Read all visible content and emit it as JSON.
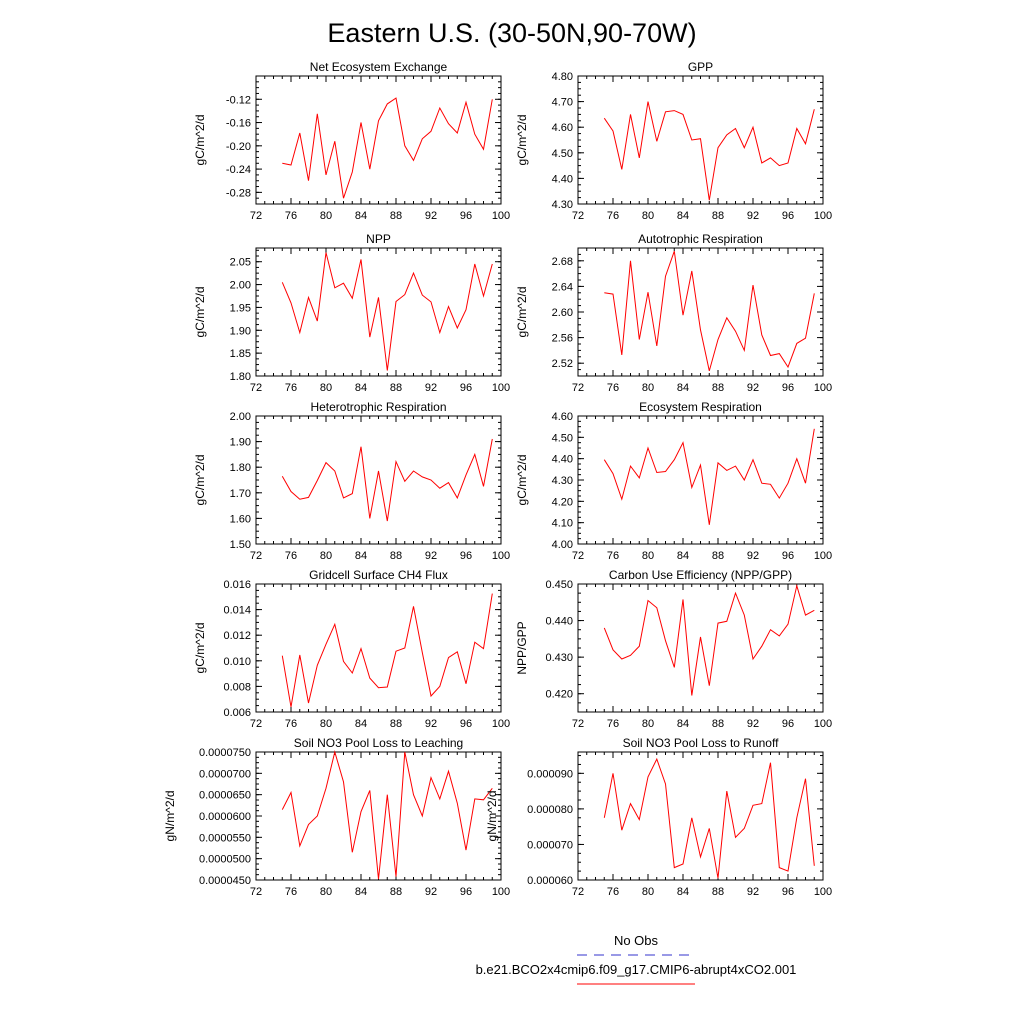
{
  "figure": {
    "title": "Eastern U.S. (30-50N,90-70W)",
    "legend": {
      "entries": [
        {
          "label": "No Obs",
          "color": "#3333cc",
          "dash": "dashed"
        },
        {
          "label": "b.e21.BCO2x4cmip6.f09_g17.CMIP6-abrupt4xCO2.001",
          "color": "#ff0000",
          "dash": "solid"
        }
      ]
    }
  },
  "chart_data": [
    {
      "type": "line",
      "title": "Net Ecosystem Exchange",
      "ylabel": "gC/m^2/d",
      "xlim": [
        72,
        100
      ],
      "ylim": [
        -0.3,
        -0.08
      ],
      "xticks": [
        "72",
        "76",
        "80",
        "84",
        "88",
        "92",
        "96",
        "100"
      ],
      "yticks": [
        "-0.12",
        "-0.16",
        "-0.20",
        "-0.24",
        "-0.28"
      ],
      "ytick_values": [
        -0.12,
        -0.16,
        -0.2,
        -0.24,
        -0.28
      ],
      "x": [
        75,
        76,
        77,
        78,
        79,
        80,
        81,
        82,
        83,
        84,
        85,
        86,
        87,
        88,
        89,
        90,
        91,
        92,
        93,
        94,
        95,
        96,
        97,
        98,
        99
      ],
      "series": [
        {
          "color": "#ff0000",
          "values": [
            -0.23,
            -0.233,
            -0.178,
            -0.26,
            -0.145,
            -0.25,
            -0.192,
            -0.29,
            -0.245,
            -0.16,
            -0.24,
            -0.157,
            -0.128,
            -0.118,
            -0.2,
            -0.225,
            -0.188,
            -0.175,
            -0.135,
            -0.162,
            -0.178,
            -0.125,
            -0.18,
            -0.206,
            -0.12
          ]
        }
      ]
    },
    {
      "type": "line",
      "title": "GPP",
      "ylabel": "gC/m^2/d",
      "xlim": [
        72,
        100
      ],
      "ylim": [
        4.3,
        4.8
      ],
      "xticks": [
        "72",
        "76",
        "80",
        "84",
        "88",
        "92",
        "96",
        "100"
      ],
      "yticks": [
        "4.80",
        "4.70",
        "4.60",
        "4.50",
        "4.40",
        "4.30"
      ],
      "ytick_values": [
        4.8,
        4.7,
        4.6,
        4.5,
        4.4,
        4.3
      ],
      "x": [
        75,
        76,
        77,
        78,
        79,
        80,
        81,
        82,
        83,
        84,
        85,
        86,
        87,
        88,
        89,
        90,
        91,
        92,
        93,
        94,
        95,
        96,
        97,
        98,
        99
      ],
      "series": [
        {
          "color": "#ff0000",
          "values": [
            4.635,
            4.585,
            4.435,
            4.65,
            4.48,
            4.7,
            4.545,
            4.66,
            4.665,
            4.65,
            4.55,
            4.555,
            4.315,
            4.52,
            4.57,
            4.595,
            4.52,
            4.6,
            4.46,
            4.48,
            4.45,
            4.46,
            4.595,
            4.535,
            4.67
          ]
        }
      ]
    },
    {
      "type": "line",
      "title": "NPP",
      "ylabel": "gC/m^2/d",
      "xlim": [
        72,
        100
      ],
      "ylim": [
        1.8,
        2.08
      ],
      "xticks": [
        "72",
        "76",
        "80",
        "84",
        "88",
        "92",
        "96",
        "100"
      ],
      "yticks": [
        "2.05",
        "2.00",
        "1.95",
        "1.90",
        "1.85",
        "1.80"
      ],
      "ytick_values": [
        2.05,
        2.0,
        1.95,
        1.9,
        1.85,
        1.8
      ],
      "x": [
        75,
        76,
        77,
        78,
        79,
        80,
        81,
        82,
        83,
        84,
        85,
        86,
        87,
        88,
        89,
        90,
        91,
        92,
        93,
        94,
        95,
        96,
        97,
        98,
        99
      ],
      "series": [
        {
          "color": "#ff0000",
          "values": [
            2.005,
            1.96,
            1.895,
            1.972,
            1.92,
            2.07,
            1.993,
            2.003,
            1.97,
            2.055,
            1.885,
            1.972,
            1.812,
            1.963,
            1.978,
            2.025,
            1.977,
            1.962,
            1.895,
            1.952,
            1.905,
            1.945,
            2.045,
            1.975,
            2.045
          ]
        }
      ]
    },
    {
      "type": "line",
      "title": "Autotrophic Respiration",
      "ylabel": "gC/m^2/d",
      "xlim": [
        72,
        100
      ],
      "ylim": [
        2.5,
        2.7
      ],
      "xticks": [
        "72",
        "76",
        "80",
        "84",
        "88",
        "92",
        "96",
        "100"
      ],
      "yticks": [
        "2.68",
        "2.64",
        "2.60",
        "2.56",
        "2.52"
      ],
      "ytick_values": [
        2.68,
        2.64,
        2.6,
        2.56,
        2.52
      ],
      "x": [
        75,
        76,
        77,
        78,
        79,
        80,
        81,
        82,
        83,
        84,
        85,
        86,
        87,
        88,
        89,
        90,
        91,
        92,
        93,
        94,
        95,
        96,
        97,
        98,
        99
      ],
      "series": [
        {
          "color": "#ff0000",
          "values": [
            2.63,
            2.628,
            2.533,
            2.68,
            2.557,
            2.631,
            2.547,
            2.656,
            2.695,
            2.595,
            2.664,
            2.572,
            2.508,
            2.557,
            2.591,
            2.57,
            2.54,
            2.642,
            2.564,
            2.532,
            2.535,
            2.514,
            2.551,
            2.559,
            2.629
          ]
        }
      ]
    },
    {
      "type": "line",
      "title": "Heterotrophic Respiration",
      "ylabel": "gC/m^2/d",
      "xlim": [
        72,
        100
      ],
      "ylim": [
        1.5,
        2.0
      ],
      "xticks": [
        "72",
        "76",
        "80",
        "84",
        "88",
        "92",
        "96",
        "100"
      ],
      "yticks": [
        "2.00",
        "1.90",
        "1.80",
        "1.70",
        "1.60",
        "1.50"
      ],
      "ytick_values": [
        2.0,
        1.9,
        1.8,
        1.7,
        1.6,
        1.5
      ],
      "x": [
        75,
        76,
        77,
        78,
        79,
        80,
        81,
        82,
        83,
        84,
        85,
        86,
        87,
        88,
        89,
        90,
        91,
        92,
        93,
        94,
        95,
        96,
        97,
        98,
        99
      ],
      "series": [
        {
          "color": "#ff0000",
          "values": [
            1.765,
            1.705,
            1.675,
            1.682,
            1.748,
            1.818,
            1.785,
            1.68,
            1.697,
            1.88,
            1.6,
            1.785,
            1.59,
            1.822,
            1.745,
            1.785,
            1.762,
            1.75,
            1.718,
            1.74,
            1.68,
            1.77,
            1.85,
            1.725,
            1.91
          ]
        }
      ]
    },
    {
      "type": "line",
      "title": "Ecosystem Respiration",
      "ylabel": "gC/m^2/d",
      "xlim": [
        72,
        100
      ],
      "ylim": [
        4.0,
        4.6
      ],
      "xticks": [
        "72",
        "76",
        "80",
        "84",
        "88",
        "92",
        "96",
        "100"
      ],
      "yticks": [
        "4.60",
        "4.50",
        "4.40",
        "4.30",
        "4.20",
        "4.10",
        "4.00"
      ],
      "ytick_values": [
        4.6,
        4.5,
        4.4,
        4.3,
        4.2,
        4.1,
        4.0
      ],
      "x": [
        75,
        76,
        77,
        78,
        79,
        80,
        81,
        82,
        83,
        84,
        85,
        86,
        87,
        88,
        89,
        90,
        91,
        92,
        93,
        94,
        95,
        96,
        97,
        98,
        99
      ],
      "series": [
        {
          "color": "#ff0000",
          "values": [
            4.395,
            4.33,
            4.21,
            4.365,
            4.31,
            4.45,
            4.335,
            4.34,
            4.395,
            4.475,
            4.265,
            4.37,
            4.09,
            4.38,
            4.345,
            4.365,
            4.3,
            4.395,
            4.285,
            4.28,
            4.215,
            4.285,
            4.4,
            4.285,
            4.54
          ]
        }
      ]
    },
    {
      "type": "line",
      "title": "Gridcell Surface CH4 Flux",
      "ylabel": "gC/m^2/d",
      "xlim": [
        72,
        100
      ],
      "ylim": [
        0.006,
        0.016
      ],
      "xticks": [
        "72",
        "76",
        "80",
        "84",
        "88",
        "92",
        "96",
        "100"
      ],
      "yticks": [
        "0.016",
        "0.014",
        "0.012",
        "0.010",
        "0.008",
        "0.006"
      ],
      "ytick_values": [
        0.016,
        0.014,
        0.012,
        0.01,
        0.008,
        0.006
      ],
      "x": [
        75,
        76,
        77,
        78,
        79,
        80,
        81,
        82,
        83,
        84,
        85,
        86,
        87,
        88,
        89,
        90,
        91,
        92,
        93,
        94,
        95,
        96,
        97,
        98,
        99
      ],
      "series": [
        {
          "color": "#ff0000",
          "values": [
            0.0104,
            0.0064,
            0.01045,
            0.0067,
            0.00965,
            0.0113,
            0.01285,
            0.00995,
            0.00905,
            0.01095,
            0.00865,
            0.0079,
            0.00795,
            0.01075,
            0.011,
            0.01425,
            0.01065,
            0.00725,
            0.008,
            0.01025,
            0.0107,
            0.0082,
            0.01145,
            0.01095,
            0.01525
          ]
        }
      ]
    },
    {
      "type": "line",
      "title": "Carbon Use Efficiency (NPP/GPP)",
      "ylabel": "NPP/GPP",
      "xlim": [
        72,
        100
      ],
      "ylim": [
        0.415,
        0.45
      ],
      "xticks": [
        "72",
        "76",
        "80",
        "84",
        "88",
        "92",
        "96",
        "100"
      ],
      "yticks": [
        "0.450",
        "0.440",
        "0.430",
        "0.420"
      ],
      "ytick_values": [
        0.45,
        0.44,
        0.43,
        0.42
      ],
      "x": [
        75,
        76,
        77,
        78,
        79,
        80,
        81,
        82,
        83,
        84,
        85,
        86,
        87,
        88,
        89,
        90,
        91,
        92,
        93,
        94,
        95,
        96,
        97,
        98,
        99
      ],
      "series": [
        {
          "color": "#ff0000",
          "values": [
            0.438,
            0.432,
            0.4295,
            0.4305,
            0.433,
            0.4455,
            0.4435,
            0.4345,
            0.4272,
            0.4458,
            0.4195,
            0.4355,
            0.4222,
            0.4393,
            0.4398,
            0.4475,
            0.4415,
            0.4295,
            0.433,
            0.4375,
            0.4358,
            0.439,
            0.4495,
            0.4415,
            0.4428
          ]
        }
      ]
    },
    {
      "type": "line",
      "title": "Soil NO3 Pool Loss to Leaching",
      "ylabel": "gN/m^2/d",
      "xlim": [
        72,
        100
      ],
      "ylim": [
        4.5e-05,
        7.5e-05
      ],
      "xticks": [
        "72",
        "76",
        "80",
        "84",
        "88",
        "92",
        "96",
        "100"
      ],
      "yticks": [
        "0.0000750",
        "0.0000700",
        "0.0000650",
        "0.0000600",
        "0.0000550",
        "0.0000500",
        "0.0000450"
      ],
      "ytick_values": [
        7.5e-05,
        7e-05,
        6.5e-05,
        6e-05,
        5.5e-05,
        5e-05,
        4.5e-05
      ],
      "x": [
        75,
        76,
        77,
        78,
        79,
        80,
        81,
        82,
        83,
        84,
        85,
        86,
        87,
        88,
        89,
        90,
        91,
        92,
        93,
        94,
        95,
        96,
        97,
        98,
        99
      ],
      "series": [
        {
          "color": "#ff0000",
          "values": [
            6.15e-05,
            6.55e-05,
            5.3e-05,
            5.8e-05,
            6e-05,
            6.65e-05,
            7.5e-05,
            6.8e-05,
            5.15e-05,
            6.1e-05,
            6.6e-05,
            4.52e-05,
            6.5e-05,
            4.58e-05,
            7.5e-05,
            6.5e-05,
            6e-05,
            6.9e-05,
            6.4e-05,
            7.05e-05,
            6.3e-05,
            5.2e-05,
            6.4e-05,
            6.38e-05,
            6.65e-05
          ]
        }
      ]
    },
    {
      "type": "line",
      "title": "Soil NO3 Pool Loss to Runoff",
      "ylabel": "gN/m^2/d",
      "xlim": [
        72,
        100
      ],
      "ylim": [
        6e-05,
        9.6e-05
      ],
      "xticks": [
        "72",
        "76",
        "80",
        "84",
        "88",
        "92",
        "96",
        "100"
      ],
      "yticks": [
        "0.000090",
        "0.000080",
        "0.000070",
        "0.000060"
      ],
      "ytick_values": [
        9e-05,
        8e-05,
        7e-05,
        6e-05
      ],
      "x": [
        75,
        76,
        77,
        78,
        79,
        80,
        81,
        82,
        83,
        84,
        85,
        86,
        87,
        88,
        89,
        90,
        91,
        92,
        93,
        94,
        95,
        96,
        97,
        98,
        99
      ],
      "series": [
        {
          "color": "#ff0000",
          "values": [
            7.75e-05,
            9e-05,
            7.4e-05,
            8.15e-05,
            7.7e-05,
            8.9e-05,
            9.4e-05,
            8.7e-05,
            6.35e-05,
            6.45e-05,
            7.75e-05,
            6.65e-05,
            7.45e-05,
            6.05e-05,
            8.5e-05,
            7.2e-05,
            7.45e-05,
            8.1e-05,
            8.15e-05,
            9.3e-05,
            6.35e-05,
            6.25e-05,
            7.75e-05,
            8.85e-05,
            6.4e-05
          ]
        }
      ]
    }
  ]
}
